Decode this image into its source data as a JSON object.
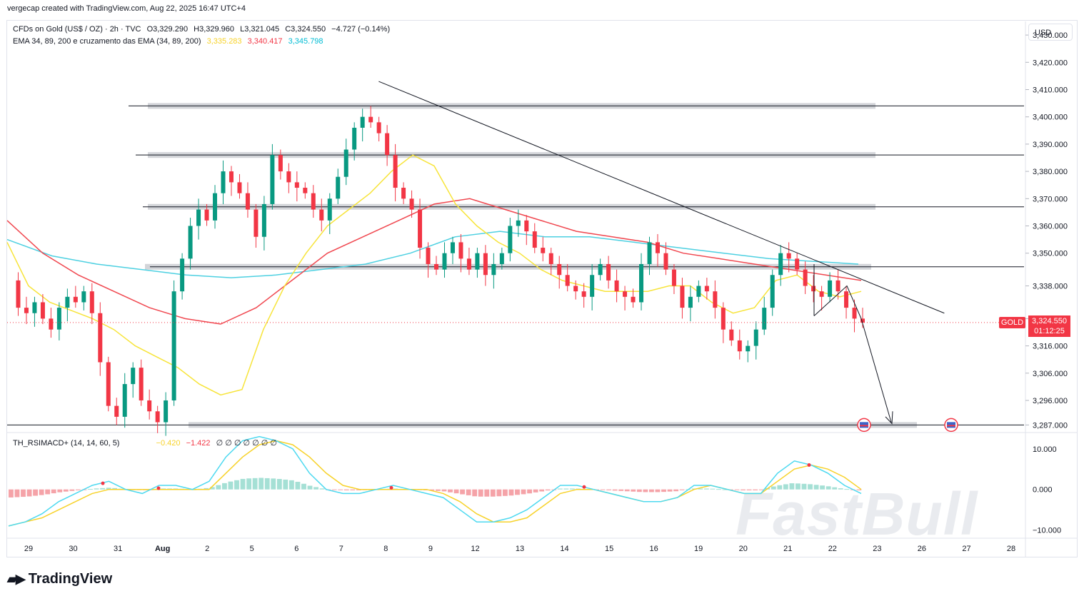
{
  "header": {
    "attribution": "vergecap created with TradingView.com, Aug 22, 2025 16:47 UTC+4"
  },
  "legend": {
    "symbol_line": "CFDs on Gold (US$ / OZ) · 2h · TVC",
    "open": "O3,329.290",
    "high": "H3,329.960",
    "low": "L3,321.045",
    "close": "C3,324.550",
    "change": "−4.727 (−0.14%)",
    "ema_label": "EMA 34, 89, 200 e cruzamento das EMA (34, 89, 200)",
    "ema34": "3,335.283",
    "ema89": "3,340.417",
    "ema200": "3,345.798",
    "ind_label": "TH_RSIMACD+ (14, 14, 60, 5)",
    "ind_v1": "−0.420",
    "ind_v2": "−1.422",
    "ind_zeros": "∅ ∅ ∅ ∅ ∅ ∅ ∅"
  },
  "currency": "USD",
  "symbol_tag": "GOLD",
  "last_price": "3,324.550",
  "countdown": "01:12:25",
  "brand": "TradingView",
  "watermark": "FastBull",
  "colors": {
    "up": "#089981",
    "down": "#f23645",
    "ema34": "#f7e43a",
    "ema89": "#f0474f",
    "ema200": "#4dd0e1",
    "zone": "#c8cacf"
  },
  "chart_data": {
    "type": "candlestick",
    "timeframe": "2h",
    "x_ticks": [
      "29",
      "30",
      "31",
      "Aug",
      "2",
      "5",
      "6",
      "7",
      "8",
      "9",
      "12",
      "13",
      "14",
      "15",
      "16",
      "19",
      "20",
      "21",
      "22",
      "23",
      "26",
      "27",
      "28"
    ],
    "y_ticks": [
      "3,430.000",
      "3,420.000",
      "3,410.000",
      "3,400.000",
      "3,390.000",
      "3,380.000",
      "3,370.000",
      "3,360.000",
      "3,350.000",
      "3,338.000",
      "3,326.000",
      "3,316.000",
      "3,306.000",
      "3,296.000",
      "3,287.000"
    ],
    "ylim": [
      3285,
      3435
    ],
    "price_path": [
      3340,
      3330,
      3328,
      3332,
      3326,
      3322,
      3330,
      3334,
      3332,
      3336,
      3328,
      3310,
      3294,
      3290,
      3302,
      3308,
      3296,
      3292,
      3288,
      3296,
      3336,
      3348,
      3360,
      3366,
      3362,
      3372,
      3380,
      3376,
      3372,
      3366,
      3356,
      3368,
      3386,
      3380,
      3376,
      3374,
      3372,
      3366,
      3362,
      3370,
      3378,
      3388,
      3396,
      3400,
      3398,
      3394,
      3386,
      3374,
      3370,
      3366,
      3352,
      3346,
      3344,
      3350,
      3354,
      3348,
      3344,
      3350,
      3342,
      3346,
      3350,
      3360,
      3362,
      3358,
      3352,
      3350,
      3346,
      3342,
      3338,
      3336,
      3334,
      3342,
      3346,
      3340,
      3336,
      3334,
      3332,
      3346,
      3354,
      3350,
      3344,
      3338,
      3330,
      3334,
      3338,
      3336,
      3330,
      3322,
      3318,
      3314,
      3316,
      3322,
      3330,
      3342,
      3350,
      3348,
      3344,
      3338,
      3336,
      3334,
      3340,
      3336,
      3330,
      3326,
      3324.55
    ],
    "ema34": [
      3354,
      3338,
      3332,
      3329,
      3326,
      3322,
      3316,
      3312,
      3308,
      3302,
      3298,
      3300,
      3322,
      3338,
      3350,
      3360,
      3366,
      3372,
      3380,
      3386,
      3382,
      3368,
      3360,
      3354,
      3350,
      3344,
      3340,
      3338,
      3336,
      3336,
      3336,
      3338,
      3338,
      3332,
      3328,
      3330,
      3340,
      3342,
      3336,
      3334,
      3336
    ],
    "ema89": [
      3362,
      3350,
      3342,
      3336,
      3330,
      3326,
      3324,
      3330,
      3340,
      3350,
      3356,
      3362,
      3368,
      3370,
      3366,
      3362,
      3358,
      3356,
      3354,
      3350,
      3348,
      3346,
      3344,
      3342,
      3340
    ],
    "ema200": [
      3355,
      3349,
      3346,
      3344,
      3342,
      3341,
      3342,
      3344,
      3346,
      3350,
      3356,
      3358,
      3356,
      3356,
      3354,
      3352,
      3350,
      3348,
      3347,
      3346
    ],
    "zones": [
      3404,
      3386,
      3367,
      3345,
      3287
    ],
    "trendline": {
      "from": [
        "8",
        3413
      ],
      "to": [
        "23",
        3328
      ]
    },
    "oscillator": {
      "name": "TH_RSIMACD+ (14, 14, 60, 5)",
      "y_ticks": [
        "10.000",
        "0.000",
        "−10.000"
      ],
      "ylim": [
        -12,
        14
      ],
      "fast": [
        -9,
        -8,
        -6,
        -3,
        -1,
        1,
        2,
        0,
        -1,
        1,
        1,
        0,
        2,
        8,
        12,
        13,
        12,
        10,
        4,
        0,
        -1,
        -1,
        0,
        1,
        0,
        -1,
        -2,
        -5,
        -8,
        -8,
        -7,
        -5,
        -2,
        1,
        1,
        0,
        -1,
        -2,
        -3,
        -3,
        -2,
        1,
        1,
        0,
        -1,
        -1,
        4,
        7,
        6,
        4,
        1,
        -1
      ],
      "slow": [
        -9,
        -8,
        -7,
        -5,
        -3,
        -1,
        0,
        0,
        0,
        0,
        0,
        0,
        0,
        4,
        8,
        11,
        12,
        11,
        8,
        4,
        1,
        0,
        0,
        0,
        0,
        0,
        -1,
        -3,
        -6,
        -8,
        -8,
        -7,
        -4,
        -1,
        0,
        0,
        -1,
        -2,
        -3,
        -3,
        -2,
        0,
        1,
        0,
        -1,
        -1,
        2,
        5,
        6,
        5,
        3,
        0
      ]
    }
  }
}
